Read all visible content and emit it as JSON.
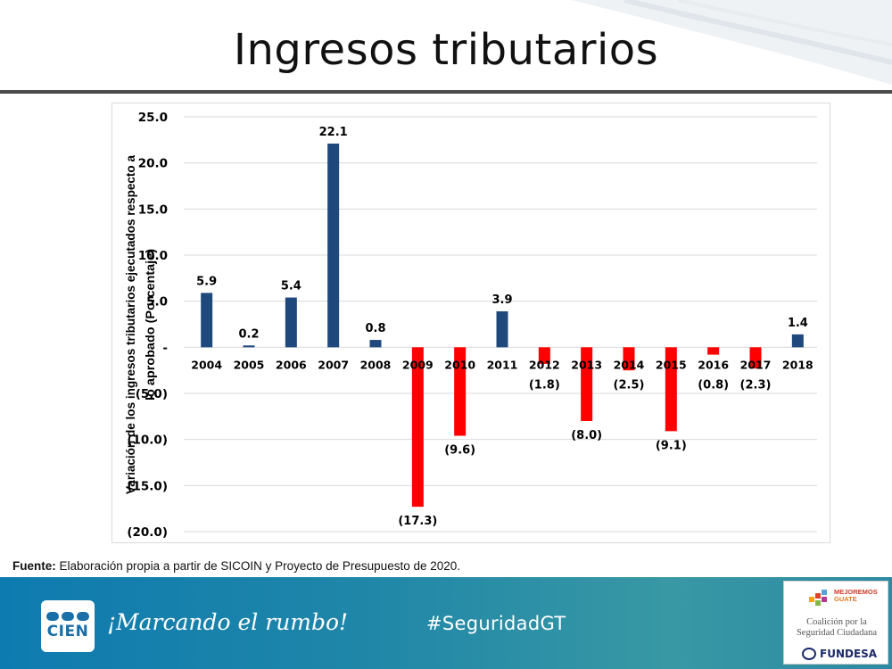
{
  "slide": {
    "title": "Ingresos tributarios",
    "source_label": "Fuente:",
    "source_text": " Elaboración propia a partir de SICOIN y Proyecto de Presupuesto de 2020."
  },
  "footer": {
    "logo_text": "CIEN",
    "slogan": "¡Marcando el rumbo!",
    "hashtag": "#SeguridadGT",
    "partner_mg_line1": "MEJOREMOS",
    "partner_mg_line2": "GUATE",
    "partner_coalition_line1": "Coalición por la",
    "partner_coalition_line2": "Seguridad Ciudadana",
    "partner_fundesa": "FUNDESA"
  },
  "colors": {
    "positive_bar": "#1f497d",
    "negative_bar": "#ff0000",
    "gridline": "#d9d9d9"
  },
  "chart_data": {
    "type": "bar",
    "categories": [
      "2004",
      "2005",
      "2006",
      "2007",
      "2008",
      "2009",
      "2010",
      "2011",
      "2012",
      "2013",
      "2014",
      "2015",
      "2016",
      "2017",
      "2018"
    ],
    "values": [
      5.9,
      0.2,
      5.4,
      22.1,
      0.8,
      -17.3,
      -9.6,
      3.9,
      -1.8,
      -8.0,
      -2.5,
      -9.1,
      -0.8,
      -2.3,
      1.4
    ],
    "value_labels": [
      "5.9",
      "0.2",
      "5.4",
      "22.1",
      "0.8",
      "(17.3)",
      "(9.6)",
      "3.9",
      "(1.8)",
      "(8.0)",
      "(2.5)",
      "(9.1)",
      "(0.8)",
      "(2.3)",
      "1.4"
    ],
    "ylabel": "Variación de los ingresos tributarios ejecutados respecto a lo aprobado (Porcentaje)",
    "ylabel_lines": [
      "Variación de los ingresos tributarios ejecutados respecto a",
      "lo aprobado (Porcentaje)"
    ],
    "xlabel": "",
    "ylim": [
      -20,
      25
    ],
    "yticks": [
      25,
      20,
      15,
      10,
      5,
      0,
      -5,
      -10,
      -15,
      -20
    ],
    "ytick_labels": [
      "25.0",
      "20.0",
      "15.0",
      "10.0",
      "5.0",
      "-",
      "(5.0)",
      "(10.0)",
      "(15.0)",
      "(20.0)"
    ],
    "grid": true,
    "legend": "none"
  }
}
